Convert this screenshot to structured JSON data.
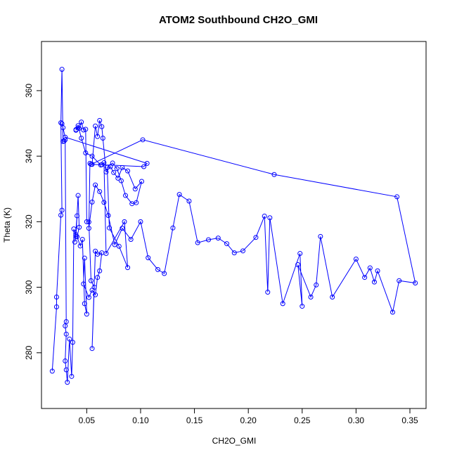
{
  "chart_data": {
    "type": "line",
    "title": "ATOM2 Southbound CH2O_GMI",
    "xlabel": "CH2O_GMI",
    "ylabel": "Theta (K)",
    "xlim": [
      0.008,
      0.365
    ],
    "ylim": [
      263,
      375
    ],
    "xticks": [
      0.05,
      0.1,
      0.15,
      0.2,
      0.25,
      0.3,
      0.35
    ],
    "xtick_labels": [
      "0.05",
      "0.10",
      "0.15",
      "0.20",
      "0.25",
      "0.30",
      "0.35"
    ],
    "yticks": [
      280,
      300,
      320,
      340,
      360
    ],
    "ytick_labels": [
      "280",
      "300",
      "320",
      "340",
      "360"
    ],
    "color": "#0000ff",
    "marker": "open-circle",
    "grid": false,
    "series": [
      {
        "x": [
          0.018,
          0.022,
          0.022,
          0.026,
          0.027,
          0.026,
          0.027,
          0.028,
          0.029,
          0.03,
          0.031,
          0.03,
          0.031,
          0.03,
          0.031,
          0.032,
          0.034,
          0.036,
          0.037,
          0.038,
          0.04,
          0.041,
          0.039,
          0.04,
          0.042,
          0.043,
          0.041,
          0.044,
          0.046,
          0.048,
          0.05,
          0.048,
          0.047,
          0.052,
          0.055,
          0.058,
          0.06,
          0.062,
          0.064,
          0.06,
          0.058,
          0.055,
          0.057,
          0.054,
          0.052,
          0.05,
          0.049,
          0.047,
          0.045,
          0.043,
          0.042,
          0.04,
          0.04,
          0.042,
          0.045,
          0.049,
          0.055,
          0.063,
          0.066,
          0.068,
          0.085,
          0.088,
          0.08,
          0.071,
          0.069,
          0.074,
          0.078,
          0.082,
          0.086,
          0.092,
          0.096,
          0.101,
          0.095,
          0.088,
          0.083,
          0.079,
          0.075,
          0.072,
          0.068,
          0.065,
          0.064,
          0.062,
          0.06,
          0.058,
          0.055,
          0.053,
          0.052,
          0.055,
          0.058,
          0.062,
          0.066,
          0.07,
          0.076,
          0.083,
          0.091,
          0.1,
          0.107,
          0.116,
          0.122,
          0.13,
          0.136,
          0.145,
          0.153,
          0.163,
          0.172,
          0.18,
          0.187,
          0.195,
          0.207,
          0.215,
          0.218,
          0.22,
          0.232,
          0.248,
          0.25,
          0.246,
          0.258,
          0.263,
          0.267,
          0.278,
          0.3,
          0.308,
          0.313,
          0.317,
          0.32,
          0.334,
          0.34,
          0.355,
          0.338,
          0.224,
          0.102,
          0.054,
          0.064,
          0.103,
          0.106,
          0.03,
          0.028,
          0.027
        ],
        "y": [
          274.4,
          294.0,
          297.0,
          322.0,
          323.5,
          350.2,
          366.5,
          344.5,
          344.6,
          345.0,
          289.5,
          288.2,
          285.7,
          277.5,
          274.8,
          271.0,
          284.2,
          272.8,
          283.2,
          317.8,
          315.5,
          321.8,
          313.8,
          316.0,
          328.0,
          318.3,
          315.4,
          312.6,
          314.6,
          295.0,
          291.8,
          308.9,
          301.0,
          296.9,
          299.1,
          297.7,
          303.0,
          305.0,
          310.5,
          310.1,
          311.0,
          281.3,
          300.0,
          302.0,
          319.9,
          320.0,
          348.2,
          348.0,
          350.4,
          348.5,
          348.7,
          348.1,
          347.9,
          349.3,
          345.5,
          341.0,
          340.0,
          337.3,
          338.0,
          310.3,
          320.0,
          306.0,
          312.5,
          318.1,
          336.6,
          337.9,
          336.2,
          332.5,
          328.0,
          325.5,
          325.8,
          332.3,
          330.0,
          335.5,
          336.5,
          333.3,
          335.0,
          336.8,
          335.2,
          345.5,
          349.0,
          350.9,
          346.0,
          349.2,
          337.5,
          337.8,
          318.0,
          326.0,
          331.2,
          329.2,
          325.9,
          321.9,
          313.0,
          318.0,
          314.6,
          320.0,
          309.0,
          305.4,
          304.2,
          318.1,
          328.3,
          326.3,
          313.6,
          314.5,
          315.0,
          313.3,
          310.5,
          311.1,
          315.2,
          321.7,
          298.5,
          321.2,
          295.0,
          310.3,
          294.2,
          306.9,
          297.0,
          300.7,
          315.5,
          297.0,
          308.6,
          303.0,
          305.9,
          301.6,
          305.0,
          292.4,
          302.0,
          301.3,
          327.6,
          334.4,
          345.0,
          337.5,
          337.4,
          336.8,
          337.8,
          345.8,
          348.7,
          349.9
        ]
      }
    ]
  }
}
